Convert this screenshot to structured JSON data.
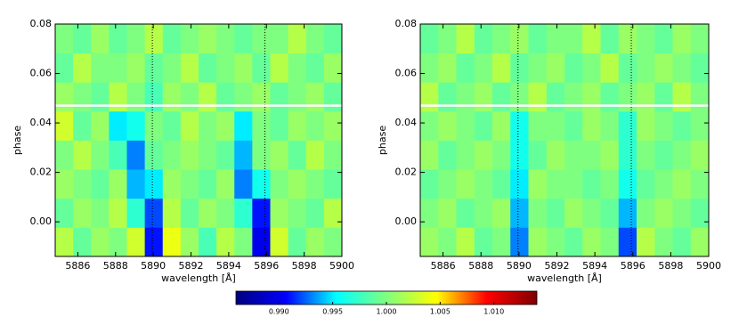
{
  "chart_data": [
    {
      "type": "heatmap",
      "xlabel": "wavelength [Å]",
      "ylabel": "phase",
      "xlim": [
        5884.8,
        5900
      ],
      "xticks": [
        5886,
        5888,
        5890,
        5892,
        5894,
        5896,
        5898,
        5900
      ],
      "ylim": [
        -0.014,
        0.08
      ],
      "yticks": [
        {
          "value": 0,
          "label": "0.00"
        },
        {
          "value": 0.02,
          "label": "0.02"
        },
        {
          "value": 0.04,
          "label": "0.04"
        },
        {
          "value": 0.06,
          "label": "0.06"
        },
        {
          "value": 0.08,
          "label": "0.08"
        }
      ],
      "x_bins": [
        5884.8,
        5885.75,
        5886.7,
        5887.65,
        5888.6,
        5889.55,
        5890.5,
        5891.45,
        5892.4,
        5893.35,
        5894.3,
        5895.25,
        5896.2,
        5897.15,
        5898.1,
        5899.05,
        5900
      ],
      "y_bins": [
        -0.014,
        -0.00225,
        0.0095,
        0.02125,
        0.033,
        0.04475,
        0.0565,
        0.06825,
        0.08
      ],
      "z": [
        [
          1.002,
          0.999,
          1.001,
          1.0,
          1.003,
          0.991,
          1.004,
          1.001,
          0.998,
          1.002,
          1.0,
          0.99,
          1.003,
          0.999,
          1.001,
          1.0
        ],
        [
          0.999,
          1.001,
          1.0,
          1.002,
          0.997,
          0.992,
          1.002,
          0.999,
          1.001,
          1.0,
          0.997,
          0.991,
          1.001,
          1.0,
          0.999,
          1.002
        ],
        [
          1.001,
          1.0,
          0.999,
          1.001,
          0.994,
          0.995,
          1.001,
          1.0,
          0.999,
          1.001,
          0.993,
          0.996,
          1.0,
          1.001,
          1.0,
          0.999
        ],
        [
          1.0,
          1.002,
          1.0,
          0.998,
          0.993,
          0.999,
          1.0,
          1.001,
          1.0,
          0.999,
          0.994,
          1.0,
          1.001,
          0.999,
          1.002,
          1.0
        ],
        [
          1.003,
          0.999,
          1.001,
          0.995,
          0.996,
          1.0,
          0.999,
          1.002,
          1.0,
          1.001,
          0.995,
          1.0,
          0.999,
          1.001,
          1.0,
          1.001
        ],
        [
          1.001,
          1.0,
          0.999,
          1.002,
          1.0,
          0.998,
          1.001,
          1.0,
          1.002,
          0.999,
          1.0,
          1.001,
          0.999,
          1.0,
          1.001,
          0.999
        ],
        [
          0.999,
          1.002,
          1.0,
          1.0,
          1.001,
          0.999,
          1.0,
          1.002,
          0.999,
          1.0,
          1.001,
          0.999,
          1.002,
          1.0,
          0.999,
          1.001
        ],
        [
          1.0,
          0.999,
          1.001,
          0.999,
          1.0,
          1.002,
          0.999,
          1.0,
          1.001,
          1.0,
          0.999,
          1.0,
          1.0,
          1.002,
          1.0,
          0.999
        ]
      ],
      "reference_lines": [
        5889.95,
        5895.92
      ],
      "gap_phase": 0.047
    },
    {
      "type": "heatmap",
      "xlabel": "wavelength [Å]",
      "ylabel": "phase",
      "xlim": [
        5884.8,
        5900
      ],
      "xticks": [
        5886,
        5888,
        5890,
        5892,
        5894,
        5896,
        5898,
        5900
      ],
      "ylim": [
        -0.014,
        0.08
      ],
      "yticks": [
        {
          "value": 0,
          "label": "0.00"
        },
        {
          "value": 0.02,
          "label": "0.02"
        },
        {
          "value": 0.04,
          "label": "0.04"
        },
        {
          "value": 0.06,
          "label": "0.06"
        },
        {
          "value": 0.08,
          "label": "0.08"
        }
      ],
      "x_bins": [
        5884.8,
        5885.75,
        5886.7,
        5887.65,
        5888.6,
        5889.55,
        5890.5,
        5891.45,
        5892.4,
        5893.35,
        5894.3,
        5895.25,
        5896.2,
        5897.15,
        5898.1,
        5899.05,
        5900
      ],
      "y_bins": [
        -0.014,
        -0.00225,
        0.0095,
        0.02125,
        0.033,
        0.04475,
        0.0565,
        0.06825,
        0.08
      ],
      "z": [
        [
          1.001,
          1.0,
          1.002,
          0.999,
          1.0,
          0.993,
          1.001,
          1.0,
          0.999,
          1.001,
          1.0,
          0.992,
          1.002,
          1.0,
          0.999,
          1.001
        ],
        [
          1.0,
          1.001,
          0.999,
          1.0,
          1.001,
          0.994,
          1.0,
          0.999,
          1.001,
          1.0,
          0.999,
          0.994,
          1.0,
          1.001,
          1.0,
          0.999
        ],
        [
          0.999,
          1.0,
          1.001,
          1.0,
          0.999,
          0.995,
          1.001,
          1.0,
          1.0,
          0.999,
          1.0,
          0.996,
          0.999,
          1.0,
          1.001,
          1.0
        ],
        [
          1.001,
          0.999,
          1.0,
          1.001,
          1.0,
          0.996,
          0.999,
          1.001,
          1.0,
          1.0,
          1.001,
          0.997,
          1.0,
          0.999,
          1.0,
          1.001
        ],
        [
          1.0,
          1.001,
          1.0,
          0.999,
          1.001,
          0.996,
          1.0,
          1.0,
          0.999,
          1.001,
          1.0,
          0.997,
          1.001,
          1.0,
          0.999,
          1.0
        ],
        [
          1.002,
          0.999,
          1.0,
          1.001,
          0.999,
          1.0,
          1.002,
          0.999,
          1.0,
          1.001,
          0.999,
          1.0,
          1.001,
          0.999,
          1.002,
          1.0
        ],
        [
          1.0,
          1.001,
          0.999,
          1.0,
          1.002,
          0.999,
          1.0,
          1.001,
          0.999,
          1.0,
          1.002,
          0.999,
          1.0,
          1.001,
          1.0,
          0.999
        ],
        [
          0.999,
          1.0,
          1.002,
          0.999,
          1.0,
          1.001,
          0.999,
          1.0,
          1.0,
          1.002,
          0.999,
          1.001,
          1.0,
          0.999,
          1.001,
          1.0
        ]
      ],
      "reference_lines": [
        5889.95,
        5895.92
      ],
      "gap_phase": 0.047
    },
    {
      "type": "colorbar",
      "clim": [
        0.986,
        1.014
      ],
      "colormap": [
        "#00007f",
        "#0000ff",
        "#00ffff",
        "#7fff7f",
        "#ffff00",
        "#ff0000",
        "#7f0000"
      ],
      "ticks": [
        {
          "value": 0.99,
          "label": "0.990"
        },
        {
          "value": 0.995,
          "label": "0.995"
        },
        {
          "value": 1.0,
          "label": "1.000"
        },
        {
          "value": 1.005,
          "label": "1.005"
        },
        {
          "value": 1.01,
          "label": "1.010"
        }
      ]
    }
  ]
}
